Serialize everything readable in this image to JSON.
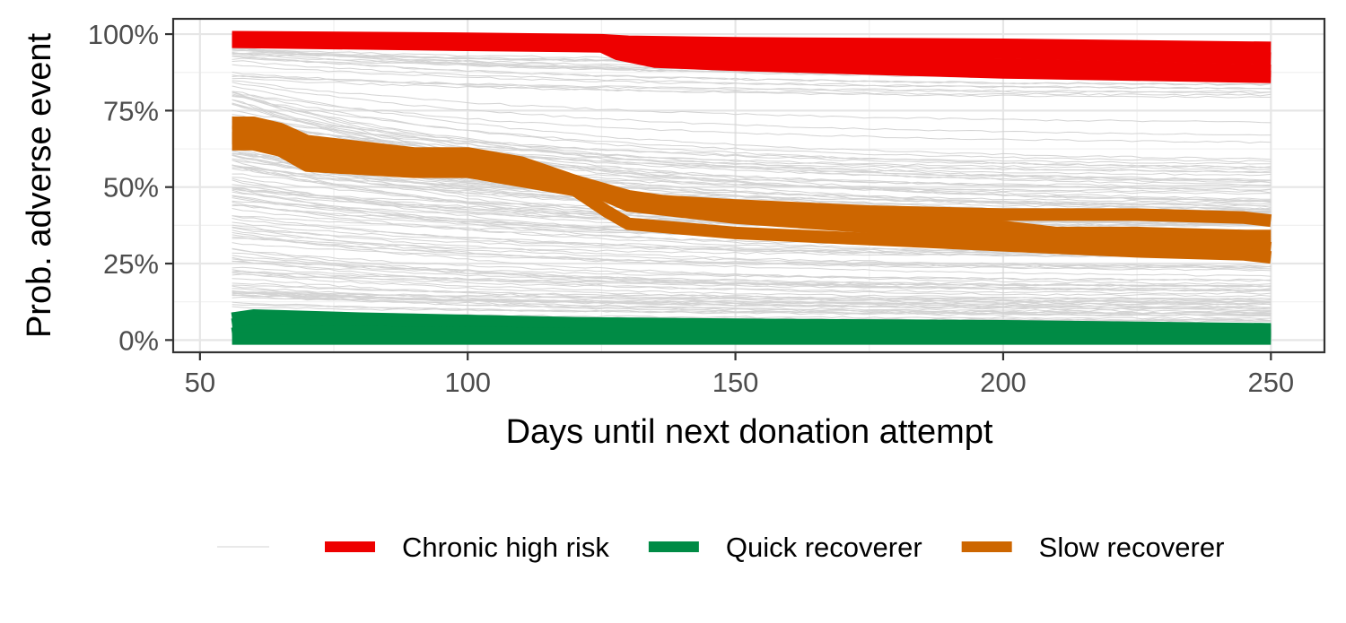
{
  "chart_data": {
    "type": "line",
    "title": "",
    "xlabel": "Days until next donation attempt",
    "ylabel": "Prob. adverse event",
    "xlim": [
      45,
      260
    ],
    "ylim": [
      -4,
      105
    ],
    "x_ticks": [
      {
        "value": 50,
        "label": "50"
      },
      {
        "value": 100,
        "label": "100"
      },
      {
        "value": 150,
        "label": "150"
      },
      {
        "value": 200,
        "label": "200"
      },
      {
        "value": 250,
        "label": "250"
      }
    ],
    "y_ticks": [
      {
        "value": 0,
        "label": "0%"
      },
      {
        "value": 25,
        "label": "25%"
      },
      {
        "value": 50,
        "label": "50%"
      },
      {
        "value": 75,
        "label": "75%"
      },
      {
        "value": 100,
        "label": "100%"
      }
    ],
    "grid": true,
    "legend_position": "bottom",
    "background_series": {
      "color": "#d3d3d3",
      "count": 150,
      "x_range": [
        56,
        250
      ]
    },
    "series": [
      {
        "name": "Chronic high risk",
        "color": "#ee0000",
        "lines": [
          {
            "x": [
              56,
              100,
              125,
              130,
              150,
              200,
              250
            ],
            "y": [
              99,
              98.5,
              98,
              97.5,
              97,
              96.5,
              95.5
            ]
          },
          {
            "x": [
              56,
              100,
              125,
              130,
              150,
              200,
              250
            ],
            "y": [
              98.5,
              97.5,
              97,
              96,
              95,
              94,
              92
            ]
          },
          {
            "x": [
              56,
              100,
              125,
              128,
              133,
              150,
              200,
              250
            ],
            "y": [
              98,
              97,
              96.5,
              95,
              93,
              92,
              90,
              88
            ]
          },
          {
            "x": [
              56,
              100,
              125,
              128,
              135,
              150,
              200,
              250
            ],
            "y": [
              97.5,
              96.5,
              96,
              93.5,
              91,
              90,
              87.5,
              86
            ]
          }
        ]
      },
      {
        "name": "Quick recoverer",
        "color": "#008b45",
        "lines": [
          {
            "x": [
              56,
              60,
              80,
              120,
              150,
              200,
              250
            ],
            "y": [
              7,
              8,
              7,
              5.5,
              5,
              4.5,
              3.5
            ]
          },
          {
            "x": [
              56,
              60,
              80,
              120,
              150,
              200,
              250
            ],
            "y": [
              5,
              6,
              5.5,
              4.5,
              4,
              3.5,
              3
            ]
          },
          {
            "x": [
              56,
              60,
              80,
              120,
              150,
              200,
              250
            ],
            "y": [
              2,
              3,
              2.5,
              2,
              2,
              2,
              1.5
            ]
          },
          {
            "x": [
              56,
              70,
              120,
              250
            ],
            "y": [
              0.5,
              0.5,
              0.5,
              0.5
            ]
          }
        ]
      },
      {
        "name": "Slow recoverer",
        "color": "#cd6600",
        "lines": [
          {
            "x": [
              56,
              60,
              65,
              70,
              90,
              100,
              110,
              120,
              126,
              130,
              140,
              150,
              175,
              200,
              225,
              245,
              250
            ],
            "y": [
              71,
              71,
              69,
              65,
              61,
              61,
              58,
              52,
              48,
              46,
              45,
              44,
              42,
              41,
              41,
              40,
              39
            ]
          },
          {
            "x": [
              56,
              60,
              65,
              70,
              90,
              100,
              110,
              115,
              120,
              126,
              130,
              150,
              175,
              200,
              210,
              225,
              245,
              250
            ],
            "y": [
              68,
              68,
              67,
              64,
              60,
              60,
              57,
              54,
              52,
              49,
              47,
              42,
              40,
              37,
              35,
              35,
              34,
              34
            ]
          },
          {
            "x": [
              56,
              60,
              65,
              70,
              90,
              100,
              110,
              120,
              126,
              130,
              150,
              175,
              200,
              225,
              245,
              250
            ],
            "y": [
              66,
              66,
              63,
              60,
              58,
              58,
              56,
              52,
              47,
              44,
              40,
              37,
              34,
              33,
              31,
              30
            ]
          },
          {
            "x": [
              56,
              60,
              65,
              70,
              90,
              100,
              110,
              120,
              126,
              130,
              150,
              175,
              200,
              225,
              245,
              250
            ],
            "y": [
              64,
              64,
              62,
              57,
              55,
              55,
              52,
              49,
              42,
              38,
              35,
              33,
              31,
              29,
              28,
              27
            ]
          }
        ]
      }
    ]
  }
}
